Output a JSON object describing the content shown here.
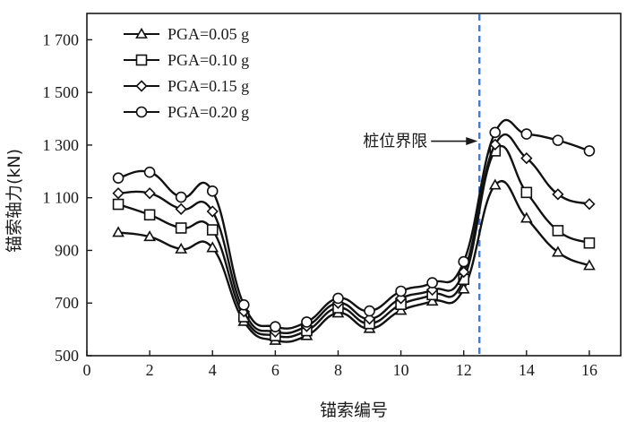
{
  "chart_data": {
    "type": "line",
    "xlabel": "锚索编号",
    "ylabel": "锚索轴力(kN)",
    "xlim": [
      0,
      17
    ],
    "ylim": [
      500,
      1800
    ],
    "xticks": [
      0,
      2,
      4,
      6,
      8,
      10,
      12,
      14,
      16
    ],
    "yticks": [
      500,
      700,
      900,
      1100,
      1300,
      1500,
      1700
    ],
    "xtick_labels": [
      "0",
      "2",
      "4",
      "6",
      "8",
      "10",
      "12",
      "14",
      "16"
    ],
    "ytick_labels": [
      "500",
      "700",
      "900",
      "1 100",
      "1 300",
      "1 500",
      "1 700"
    ],
    "x": [
      1,
      2,
      3,
      4,
      5,
      6,
      7,
      8,
      9,
      10,
      11,
      12,
      13,
      14,
      15,
      16
    ],
    "series": [
      {
        "name": "PGA=0.05 g",
        "marker": "triangle",
        "values": [
          968,
          952,
          905,
          910,
          630,
          558,
          576,
          662,
          603,
          672,
          707,
          753,
          1148,
          1022,
          893,
          842
        ]
      },
      {
        "name": "PGA=0.10 g",
        "marker": "square",
        "values": [
          1075,
          1035,
          985,
          978,
          648,
          576,
          595,
          682,
          622,
          695,
          732,
          790,
          1278,
          1120,
          975,
          928
        ]
      },
      {
        "name": "PGA=0.15 g",
        "marker": "diamond",
        "values": [
          1117,
          1117,
          1057,
          1048,
          668,
          591,
          612,
          700,
          640,
          718,
          750,
          818,
          1302,
          1250,
          1113,
          1076
        ]
      },
      {
        "name": "PGA=0.20 g",
        "marker": "circle",
        "values": [
          1175,
          1197,
          1102,
          1125,
          693,
          610,
          628,
          718,
          670,
          745,
          777,
          857,
          1348,
          1342,
          1318,
          1278
        ]
      }
    ],
    "reference_line": {
      "x": 12.5,
      "style": "dashed",
      "color": "#4a78c8"
    },
    "annotation": {
      "text": "桩位界限",
      "target_x": 12.5,
      "target_y": 1315
    },
    "legend": {
      "position": "top-left"
    },
    "grid": false,
    "line_color": "#111111"
  }
}
